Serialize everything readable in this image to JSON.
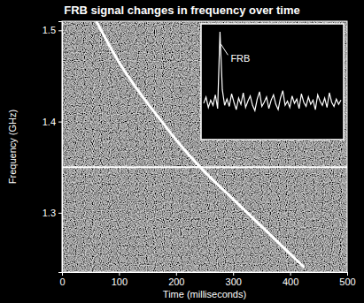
{
  "chart_data": {
    "type": "line",
    "title": "FRB signal changes in frequency over time",
    "x_label": "Time (milliseconds)",
    "y_label": "Frequency (GHz)",
    "xlim": [
      0,
      500
    ],
    "xticks": [
      0,
      100,
      200,
      300,
      400,
      500
    ],
    "ylim": [
      1.235,
      1.51
    ],
    "yticks": [
      1.3,
      1.4,
      1.5
    ],
    "series": [
      {
        "type": "line",
        "color": "#ffffff",
        "x": [
          60,
          100,
          150,
          175,
          200,
          250,
          300,
          350,
          400,
          425
        ],
        "values": [
          1.51,
          1.465,
          1.42,
          1.4,
          1.38,
          1.345,
          1.315,
          1.285,
          1.255,
          1.24
        ]
      },
      {
        "type": "line",
        "color": "#ffffff",
        "x": [
          0,
          500
        ],
        "values": [
          1.35,
          1.35
        ]
      }
    ],
    "inset": {
      "type": "line",
      "annotation": "FRB",
      "color": "#ffffff",
      "tick_labels": false,
      "xlim": [
        0,
        59
      ],
      "ylim": [
        0,
        1.05
      ],
      "x": [
        0,
        1,
        2,
        3,
        4,
        5,
        6,
        7,
        8,
        9,
        10,
        11,
        12,
        13,
        14,
        15,
        16,
        17,
        18,
        19,
        20,
        21,
        22,
        23,
        24,
        25,
        26,
        27,
        28,
        29,
        30,
        31,
        32,
        33,
        34,
        35,
        36,
        37,
        38,
        39,
        40,
        41,
        42,
        43,
        44,
        45,
        46,
        47,
        48,
        49,
        50,
        51,
        52,
        53,
        54,
        55,
        56,
        57,
        58,
        59
      ],
      "values": [
        0.32,
        0.38,
        0.28,
        0.35,
        0.3,
        0.4,
        0.27,
        1.0,
        0.45,
        0.3,
        0.36,
        0.29,
        0.41,
        0.33,
        0.26,
        0.37,
        0.31,
        0.42,
        0.28,
        0.34,
        0.39,
        0.3,
        0.25,
        0.36,
        0.43,
        0.29,
        0.33,
        0.38,
        0.27,
        0.35,
        0.4,
        0.31,
        0.26,
        0.37,
        0.44,
        0.3,
        0.34,
        0.28,
        0.39,
        0.32,
        0.36,
        0.27,
        0.41,
        0.33,
        0.29,
        0.38,
        0.31,
        0.35,
        0.26,
        0.4,
        0.34,
        0.3,
        0.37,
        0.28,
        0.42,
        0.33,
        0.29,
        0.36,
        0.31,
        0.35
      ]
    }
  }
}
